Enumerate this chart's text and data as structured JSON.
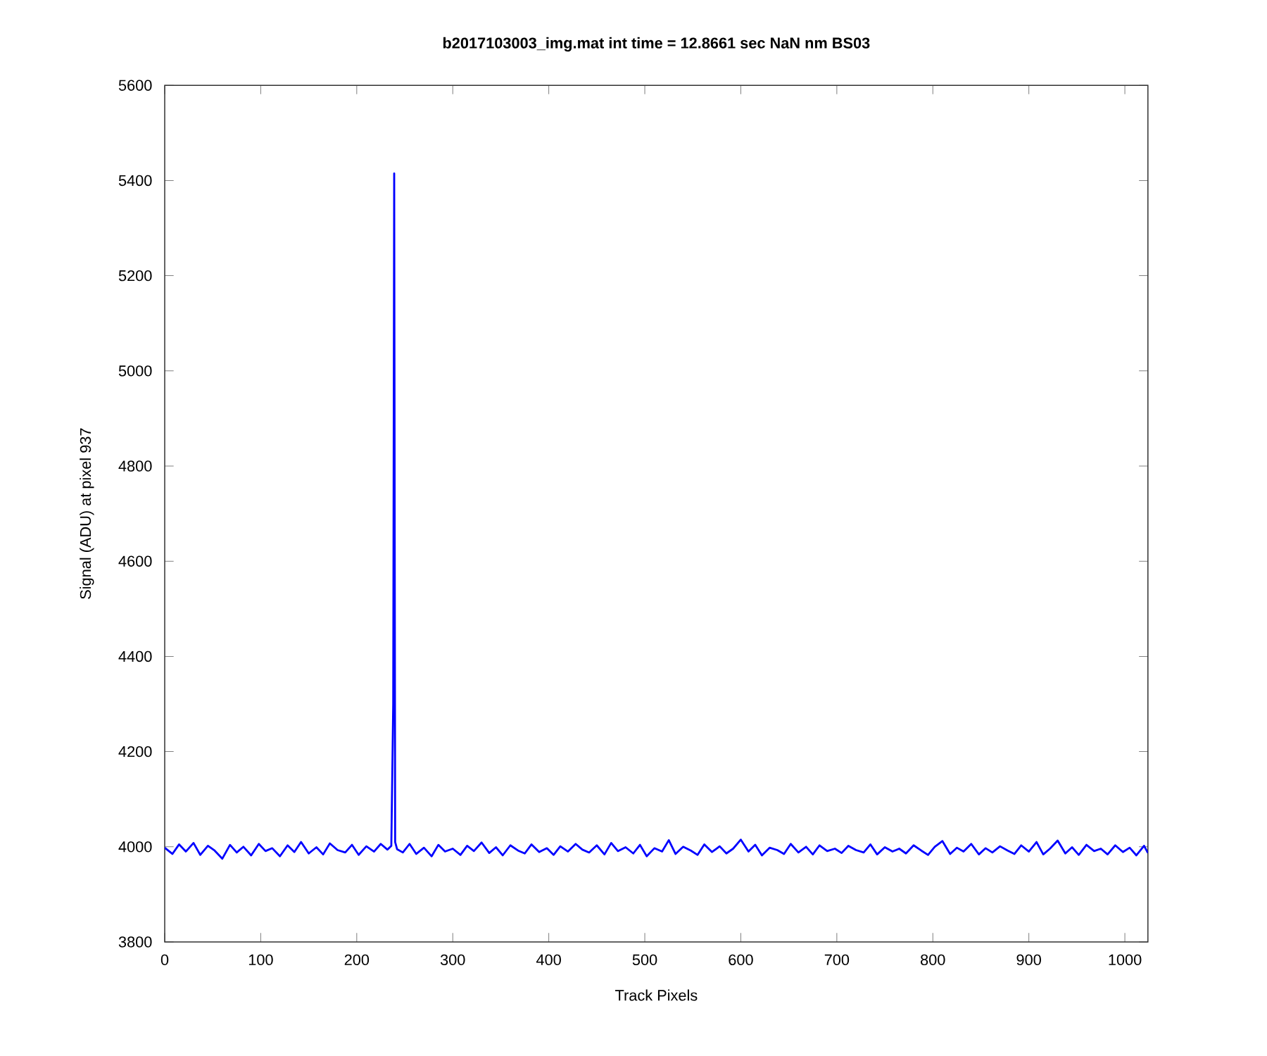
{
  "chart_data": {
    "type": "line",
    "title": "b2017103003_img.mat int time = 12.8661 sec  NaN nm BS03",
    "xlabel": "Track Pixels",
    "ylabel": "Signal (ADU) at pixel 937",
    "xlim": [
      0,
      1024
    ],
    "ylim": [
      3800,
      5600
    ],
    "xticks": [
      0,
      100,
      200,
      300,
      400,
      500,
      600,
      700,
      800,
      900,
      1000
    ],
    "yticks": [
      3800,
      4000,
      4200,
      4400,
      4600,
      4800,
      5000,
      5200,
      5400,
      5600
    ],
    "marker": "none",
    "line_style": "solid",
    "series": [
      {
        "color": "#0000ff",
        "x": [
          0,
          8,
          15,
          22,
          30,
          37,
          45,
          52,
          60,
          68,
          75,
          82,
          90,
          98,
          105,
          112,
          120,
          128,
          135,
          142,
          150,
          158,
          165,
          172,
          180,
          188,
          195,
          202,
          210,
          218,
          225,
          232,
          236,
          238,
          239,
          240,
          242,
          248,
          255,
          262,
          270,
          278,
          285,
          292,
          300,
          308,
          315,
          322,
          330,
          338,
          345,
          352,
          360,
          368,
          375,
          382,
          390,
          398,
          405,
          412,
          420,
          428,
          435,
          442,
          450,
          458,
          465,
          472,
          480,
          488,
          495,
          502,
          510,
          518,
          525,
          532,
          540,
          548,
          555,
          562,
          570,
          578,
          585,
          592,
          600,
          608,
          615,
          622,
          630,
          638,
          645,
          652,
          660,
          668,
          675,
          682,
          690,
          698,
          705,
          712,
          720,
          728,
          735,
          742,
          750,
          758,
          765,
          772,
          780,
          788,
          795,
          802,
          810,
          818,
          825,
          832,
          840,
          848,
          855,
          862,
          870,
          878,
          885,
          892,
          900,
          908,
          915,
          922,
          930,
          938,
          945,
          952,
          960,
          968,
          975,
          982,
          990,
          998,
          1005,
          1012,
          1020,
          1024
        ],
        "values": [
          3998,
          3985,
          4005,
          3990,
          4008,
          3983,
          4002,
          3992,
          3975,
          4004,
          3988,
          4000,
          3982,
          4006,
          3991,
          3997,
          3980,
          4003,
          3989,
          4010,
          3986,
          3999,
          3984,
          4007,
          3993,
          3988,
          4004,
          3983,
          4001,
          3990,
          4006,
          3994,
          4002,
          4300,
          5415,
          4010,
          3995,
          3988,
          4006,
          3985,
          3998,
          3980,
          4004,
          3990,
          3996,
          3983,
          4002,
          3991,
          4009,
          3987,
          3999,
          3982,
          4003,
          3992,
          3986,
          4005,
          3989,
          3997,
          3983,
          4001,
          3990,
          4006,
          3994,
          3988,
          4003,
          3984,
          4008,
          3991,
          3999,
          3986,
          4004,
          3980,
          3997,
          3990,
          4014,
          3985,
          4000,
          3992,
          3983,
          4005,
          3989,
          4001,
          3986,
          3996,
          4015,
          3990,
          4004,
          3982,
          3998,
          3993,
          3985,
          4006,
          3988,
          4000,
          3984,
          4003,
          3991,
          3996,
          3987,
          4002,
          3993,
          3988,
          4005,
          3984,
          3999,
          3990,
          3996,
          3986,
          4003,
          3992,
          3983,
          4000,
          4012,
          3985,
          3998,
          3990,
          4006,
          3984,
          3997,
          3988,
          4001,
          3992,
          3985,
          4003,
          3990,
          4010,
          3984,
          3996,
          4013,
          3986,
          3999,
          3983,
          4004,
          3991,
          3996,
          3984,
          4003,
          3989,
          3998,
          3982,
          4002,
          3987
        ]
      }
    ]
  }
}
